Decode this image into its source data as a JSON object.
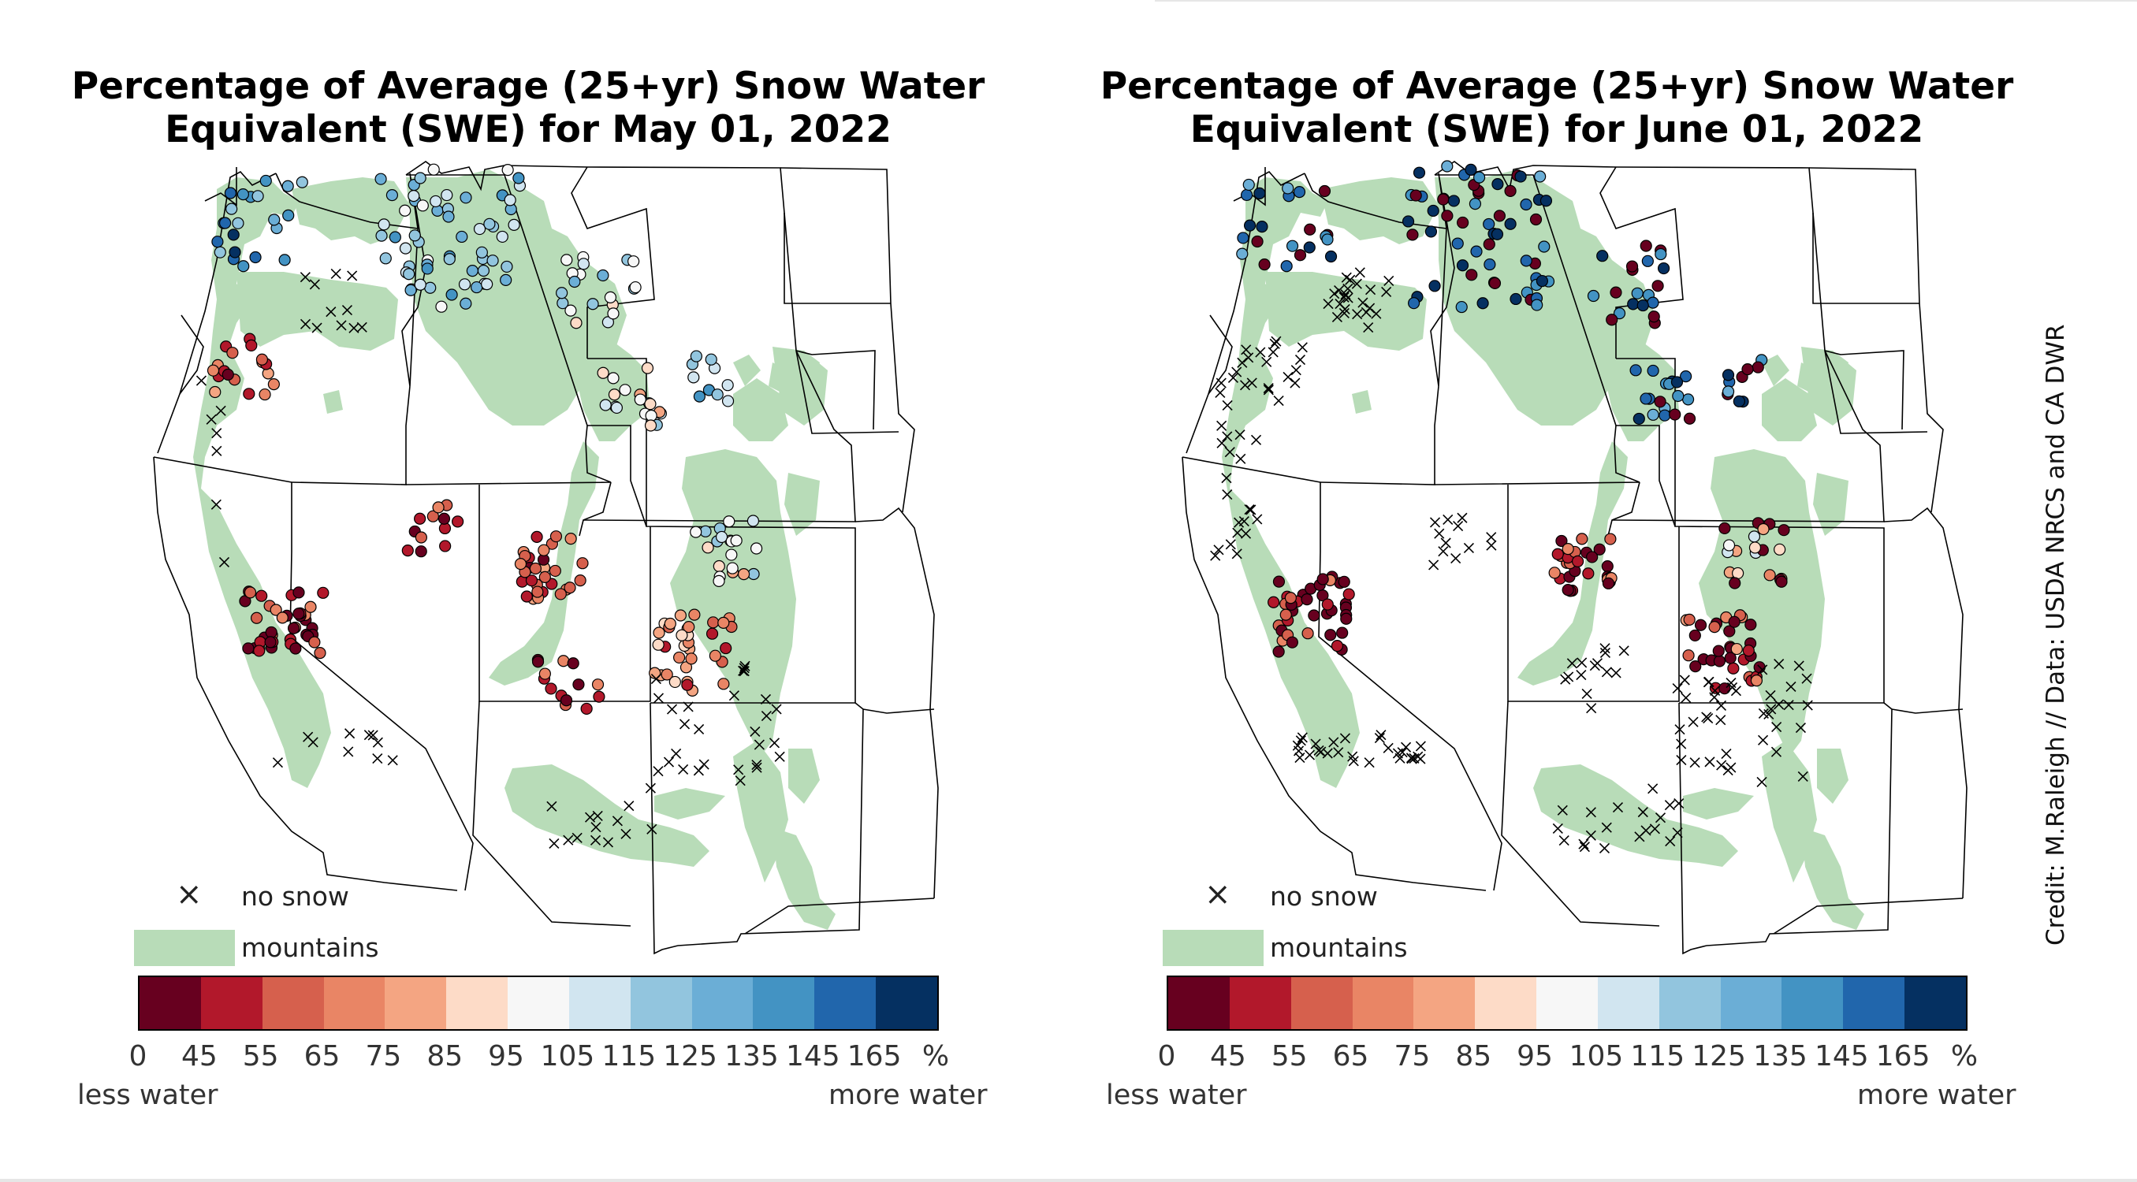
{
  "panels": [
    {
      "title_line1": "Percentage of Average (25+yr) Snow Water",
      "title_line2": "Equivalent (SWE) for May 01, 2022"
    },
    {
      "title_line1": "Percentage of Average (25+yr) Snow Water",
      "title_line2": "Equivalent (SWE) for June 01, 2022"
    }
  ],
  "legend": {
    "no_snow_label": "no snow",
    "mountains_label": "mountains",
    "no_snow_marker": "×",
    "mountains_color": "#b8dcb8"
  },
  "colorbar": {
    "tick_labels": [
      "0",
      "45",
      "55",
      "65",
      "75",
      "85",
      "95",
      "105",
      "115",
      "125",
      "135",
      "145",
      "165",
      "%"
    ],
    "colors": [
      "#67001f",
      "#b2182b",
      "#d6604d",
      "#e98565",
      "#f4a582",
      "#fddbc7",
      "#f7f7f7",
      "#d1e5f0",
      "#92c5de",
      "#6baed6",
      "#4393c3",
      "#2166ac",
      "#053061"
    ],
    "low_label": "less water",
    "high_label": "more water"
  },
  "credit": "Credit: M.Raleigh // Data: USDA NRCS and CA DWR"
}
